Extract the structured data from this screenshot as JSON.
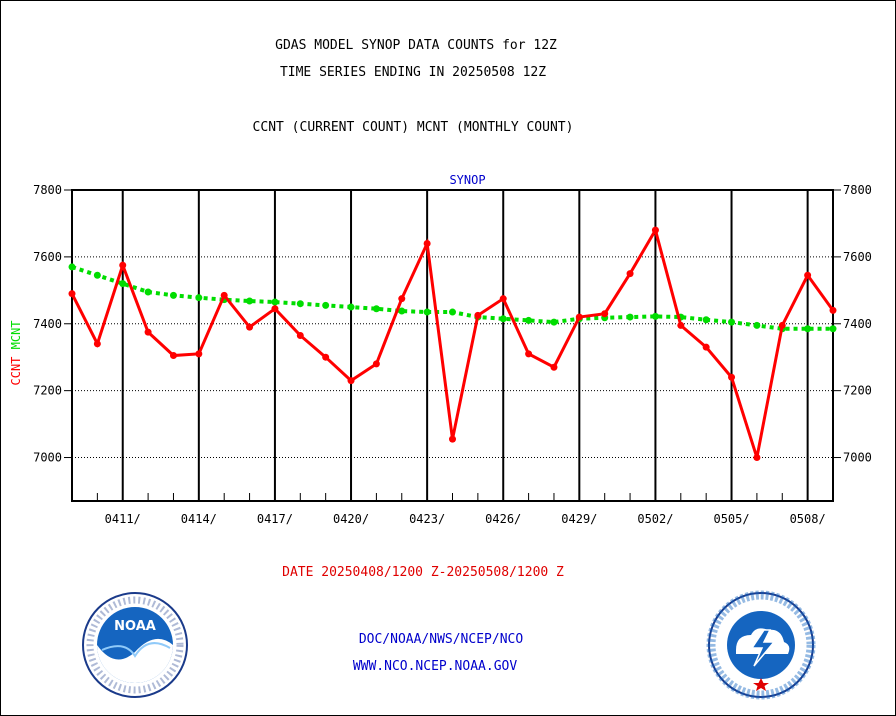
{
  "title_line1": "GDAS MODEL SYNOP DATA COUNTS for 12Z",
  "title_line2": "TIME SERIES ENDING IN 20250508 12Z",
  "subtitle": "CCNT (CURRENT COUNT) MCNT (MONTHLY COUNT)",
  "date_range": "DATE 20250408/1200 Z-20250508/1200 Z",
  "footer_line1": "DOC/NOAA/NWS/NCEP/NCO",
  "footer_line2": "WWW.NCO.NCEP.NOAA.GOV",
  "logos": {
    "left": "noaa-logo",
    "right": "nws-logo"
  },
  "chart_data": {
    "type": "line",
    "title": "SYNOP",
    "ylabel_parts": [
      "CCNT",
      "MCNT"
    ],
    "ylim": [
      6870,
      7800
    ],
    "yticks": [
      7000,
      7200,
      7400,
      7600,
      7800
    ],
    "x_days": 30,
    "x_tick_labels": [
      "0411/",
      "0414/",
      "0417/",
      "0420/",
      "0423/",
      "0426/",
      "0429/",
      "0502/",
      "0505/",
      "0508/"
    ],
    "grid": true,
    "colors": {
      "ccnt": "#ff0000",
      "mcnt": "#00dd00",
      "title": "#0000cc",
      "axis": "#000000"
    },
    "series": [
      {
        "name": "CCNT",
        "values": [
          7490,
          7340,
          7575,
          7375,
          7305,
          7310,
          7485,
          7390,
          7445,
          7365,
          7300,
          7230,
          7280,
          7475,
          7640,
          7055,
          7425,
          7475,
          7310,
          7270,
          7420,
          7430,
          7550,
          7680,
          7395,
          7330,
          7240,
          7000,
          7395,
          7545,
          7440
        ]
      },
      {
        "name": "MCNT",
        "values": [
          7570,
          7545,
          7520,
          7495,
          7485,
          7478,
          7472,
          7468,
          7465,
          7460,
          7455,
          7450,
          7445,
          7438,
          7435,
          7435,
          7420,
          7415,
          7410,
          7405,
          7415,
          7418,
          7420,
          7422,
          7420,
          7412,
          7405,
          7395,
          7385,
          7385,
          7385
        ]
      }
    ]
  }
}
